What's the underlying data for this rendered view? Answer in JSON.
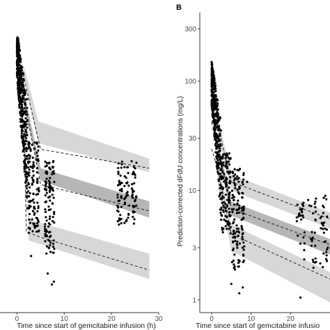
{
  "chart_data": [
    {
      "type": "scatter",
      "panel": "A",
      "panel_label_visible": false,
      "xlabel": "Time since start of gemcitabine infusion (h)",
      "ylabel": "",
      "xlim": [
        -3,
        30
      ],
      "x_ticks": [
        0,
        10,
        20,
        30
      ],
      "y_scale": "log",
      "ylim": [
        0.22,
        300
      ],
      "y_ticks_labels_visible": false,
      "grid": false,
      "observations": {
        "early_cluster": {
          "x_range": [
            0,
            2.2
          ],
          "y_range_log": [
            2.2,
            200
          ],
          "count": 420
        },
        "mid_cluster_1": {
          "x_range": [
            2.2,
            4.8
          ],
          "y_range_log": [
            1.0,
            15
          ],
          "count": 120
        },
        "mid_cluster_2": {
          "x_range": [
            5.8,
            8.0
          ],
          "y_range_log": [
            0.6,
            9
          ],
          "count": 110
        },
        "late_cluster": {
          "x_range": [
            21.0,
            25.5
          ],
          "y_range_log": [
            1.4,
            9
          ],
          "count": 100
        },
        "outliers": [
          [
            7.4,
            0.42
          ],
          [
            7.8,
            0.45
          ],
          [
            3.0,
            0.85
          ],
          [
            6.5,
            0.55
          ]
        ]
      },
      "percentile_lines": {
        "p95": [
          [
            0.0,
            200
          ],
          [
            1.5,
            70
          ],
          [
            5.0,
            12
          ],
          [
            28.0,
            7.5
          ]
        ],
        "p50": [
          [
            0.0,
            120
          ],
          [
            1.5,
            42
          ],
          [
            5.0,
            5.0
          ],
          [
            28.0,
            2.6
          ]
        ],
        "p5": [
          [
            0.0,
            55
          ],
          [
            1.5,
            20
          ],
          [
            2.0,
            1.55
          ],
          [
            5.0,
            1.35
          ],
          [
            28.0,
            0.6
          ]
        ]
      },
      "confidence_bands": {
        "upper": {
          "lower": [
            [
              1.5,
              70
            ],
            [
              4.5,
              14
            ],
            [
              28.0,
              6.8
            ]
          ],
          "upper": [
            [
              1.5,
              95
            ],
            [
              4.5,
              24
            ],
            [
              28.0,
              9.5
            ]
          ]
        },
        "median": {
          "lower": [
            [
              1.5,
              35
            ],
            [
              5.0,
              5.5
            ],
            [
              28.0,
              2.2
            ]
          ],
          "upper": [
            [
              1.5,
              50
            ],
            [
              5.0,
              7.5
            ],
            [
              28.0,
              3.3
            ]
          ]
        },
        "lower": {
          "lower": [
            [
              1.5,
              15
            ],
            [
              2.5,
              1.25
            ],
            [
              28.0,
              0.48
            ]
          ],
          "upper": [
            [
              1.5,
              25
            ],
            [
              2.5,
              2.1
            ],
            [
              28.0,
              0.9
            ]
          ]
        }
      }
    },
    {
      "type": "scatter",
      "panel": "B",
      "panel_label": "B",
      "xlabel": "Time since start of gemcitabine infusio",
      "ylabel": "Prediction-corrected dFdU concentrations (mg/L)",
      "xlim": [
        -3,
        30
      ],
      "x_ticks": [
        0,
        10,
        20
      ],
      "y_scale": "log",
      "ylim": [
        0.8,
        400
      ],
      "y_ticks": [
        1,
        3,
        10,
        30,
        100,
        300
      ],
      "y_tick_labels": [
        "1",
        "3",
        "10",
        "30",
        "100",
        "300"
      ],
      "grid": false,
      "observations": {
        "early_cluster": {
          "x_range": [
            0,
            2.6
          ],
          "y_range_log": [
            3.5,
            140
          ],
          "count": 380
        },
        "mid_cluster_1": {
          "x_range": [
            2.5,
            5.0
          ],
          "y_range_log": [
            3.0,
            22
          ],
          "count": 120
        },
        "mid_cluster_2": {
          "x_range": [
            5.0,
            8.5
          ],
          "y_range_log": [
            1.3,
            16
          ],
          "count": 130
        },
        "late_cluster": {
          "x_range": [
            21.0,
            30.0
          ],
          "y_range_log": [
            1.5,
            9
          ],
          "count": 80
        },
        "outliers": [
          [
            7.0,
            1.15
          ],
          [
            7.9,
            1.3
          ],
          [
            5.0,
            1.4
          ],
          [
            22.5,
            1.05
          ],
          [
            9.0,
            12
          ],
          [
            6.0,
            13
          ]
        ]
      },
      "percentile_lines": {
        "p95": [
          [
            0.0,
            60
          ],
          [
            1.5,
            40
          ],
          [
            5.0,
            12
          ],
          [
            30.0,
            5.5
          ]
        ],
        "p50": [
          [
            0.0,
            42
          ],
          [
            1.5,
            26
          ],
          [
            5.0,
            6.8
          ],
          [
            30.0,
            3.2
          ]
        ],
        "p5": [
          [
            0.0,
            24
          ],
          [
            1.5,
            16
          ],
          [
            5.0,
            4.0
          ],
          [
            30.0,
            1.55
          ]
        ]
      },
      "confidence_bands": {
        "upper": {
          "lower": [
            [
              1.5,
              35
            ],
            [
              5.0,
              10
            ],
            [
              30.0,
              4.5
            ]
          ],
          "upper": [
            [
              1.5,
              48
            ],
            [
              5.0,
              14
            ],
            [
              30.0,
              6.3
            ]
          ]
        },
        "median": {
          "lower": [
            [
              1.5,
              22
            ],
            [
              5.0,
              5.9
            ],
            [
              30.0,
              2.6
            ]
          ],
          "upper": [
            [
              1.5,
              30
            ],
            [
              5.0,
              7.9
            ],
            [
              30.0,
              3.6
            ]
          ]
        },
        "lower": {
          "lower": [
            [
              1.5,
              12
            ],
            [
              5.0,
              2.8
            ],
            [
              30.0,
              0.95
            ]
          ],
          "upper": [
            [
              1.5,
              19
            ],
            [
              5.0,
              4.9
            ],
            [
              30.0,
              1.8
            ]
          ]
        }
      }
    }
  ]
}
